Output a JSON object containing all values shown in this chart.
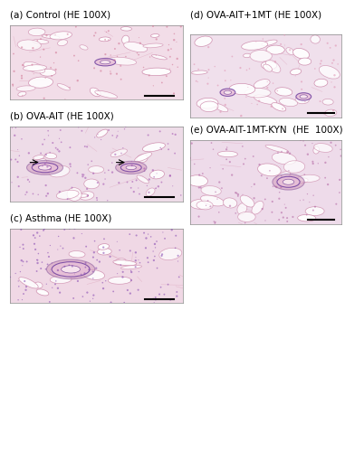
{
  "background_color": "#ffffff",
  "labels": {
    "a": "(a) Control (HE 100X)",
    "b": "(b) OVA-AIT (HE 100X)",
    "c": "(c) Asthma (HE 100X)",
    "d": "(d) OVA-AIT+1MT (HE 100X)",
    "e": "(e) OVA-AIT-1MT-KYN  (HE  100X)"
  },
  "label_fontsize": 7.5,
  "label_color": "#000000",
  "figsize": [
    3.81,
    5.0
  ],
  "dpi": 100,
  "panel_bg": "#f5e8f0",
  "alveoli_color": "#ffffff",
  "vessel_color": "#9b59b6",
  "stroma_color": "#e8b4cc",
  "cell_color": "#c060a0"
}
